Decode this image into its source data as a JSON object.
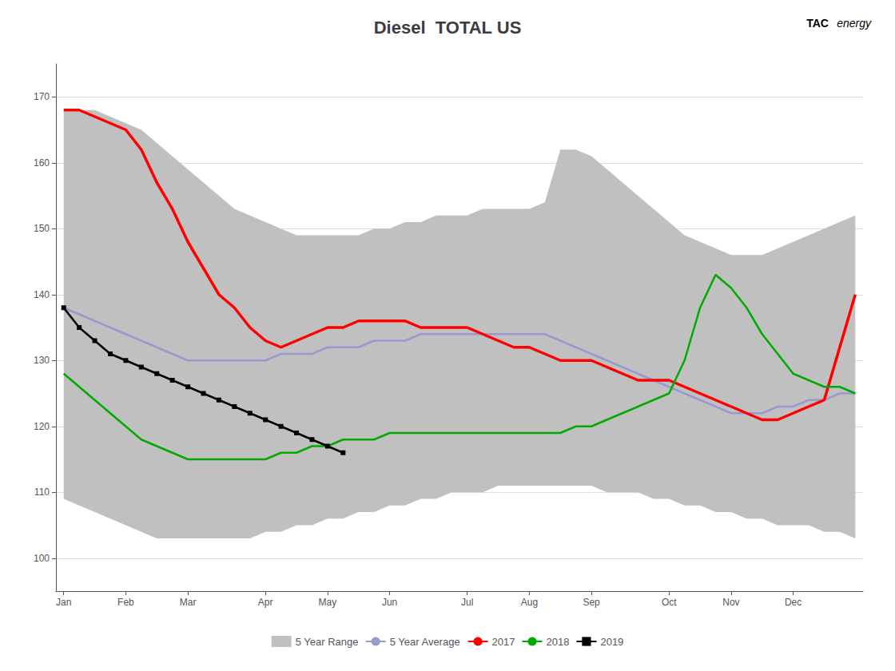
{
  "chart_data": {
    "type": "line",
    "title": "Diesel  TOTAL US",
    "annotations": [
      "TAC",
      "energy"
    ],
    "x": [
      0,
      1,
      2,
      3,
      4,
      5,
      6,
      7,
      8,
      9,
      10,
      11,
      12,
      13,
      14,
      15,
      16,
      17,
      18,
      19,
      20,
      21,
      22,
      23,
      24,
      25,
      26,
      27,
      28,
      29,
      30,
      31,
      32,
      33,
      34,
      35,
      36,
      37,
      38,
      39,
      40,
      41,
      42,
      43,
      44,
      45,
      46,
      47,
      48,
      49,
      50,
      51
    ],
    "xlim": [
      -0.5,
      51.5
    ],
    "xticks": [
      {
        "value": 0,
        "label": "Jan"
      },
      {
        "value": 4,
        "label": "Feb"
      },
      {
        "value": 8,
        "label": "Mar"
      },
      {
        "value": 13,
        "label": "Apr"
      },
      {
        "value": 17,
        "label": "May"
      },
      {
        "value": 21,
        "label": "Jun"
      },
      {
        "value": 26,
        "label": "Jul"
      },
      {
        "value": 30,
        "label": "Aug"
      },
      {
        "value": 34,
        "label": "Sep"
      },
      {
        "value": 39,
        "label": "Oct"
      },
      {
        "value": 43,
        "label": "Nov"
      },
      {
        "value": 47,
        "label": "Dec"
      }
    ],
    "ylim": [
      95,
      175
    ],
    "yticks": [
      100,
      110,
      120,
      130,
      140,
      150,
      160,
      170
    ],
    "grid": true,
    "legend": "bottom",
    "series": [
      {
        "name": "5 Year Range",
        "type": "range",
        "color": "#c0c0c0",
        "upper": [
          168,
          168,
          168,
          167,
          166,
          165,
          163,
          161,
          159,
          157,
          155,
          153,
          152,
          151,
          150,
          149,
          149,
          149,
          149,
          149,
          150,
          150,
          151,
          151,
          152,
          152,
          152,
          153,
          153,
          153,
          153,
          154,
          162,
          162,
          161,
          159,
          157,
          155,
          153,
          151,
          149,
          148,
          147,
          146,
          146,
          146,
          147,
          148,
          149,
          150,
          151,
          152
        ],
        "lower": [
          109,
          108,
          107,
          106,
          105,
          104,
          103,
          103,
          103,
          103,
          103,
          103,
          103,
          104,
          104,
          105,
          105,
          106,
          106,
          107,
          107,
          108,
          108,
          109,
          109,
          110,
          110,
          110,
          111,
          111,
          111,
          111,
          111,
          111,
          111,
          110,
          110,
          110,
          109,
          109,
          108,
          108,
          107,
          107,
          106,
          106,
          105,
          105,
          105,
          104,
          104,
          103
        ]
      },
      {
        "name": "5 Year Average",
        "type": "line",
        "color": "#9999cc",
        "values": [
          138,
          137,
          136,
          135,
          134,
          133,
          132,
          131,
          130,
          130,
          130,
          130,
          130,
          130,
          131,
          131,
          131,
          132,
          132,
          132,
          133,
          133,
          133,
          134,
          134,
          134,
          134,
          134,
          134,
          134,
          134,
          134,
          133,
          132,
          131,
          130,
          129,
          128,
          127,
          126,
          125,
          124,
          123,
          122,
          122,
          122,
          123,
          123,
          124,
          124,
          125,
          125
        ]
      },
      {
        "name": "2017",
        "type": "line",
        "color": "#ff0000",
        "values": [
          168,
          168,
          167,
          166,
          165,
          162,
          157,
          153,
          148,
          144,
          140,
          138,
          135,
          133,
          132,
          133,
          134,
          135,
          135,
          136,
          136,
          136,
          136,
          135,
          135,
          135,
          135,
          134,
          133,
          132,
          132,
          131,
          130,
          130,
          130,
          129,
          128,
          127,
          127,
          127,
          126,
          125,
          124,
          123,
          122,
          121,
          121,
          122,
          123,
          124,
          132,
          140
        ]
      },
      {
        "name": "2018",
        "type": "line",
        "color": "#00aa00",
        "values": [
          128,
          126,
          124,
          122,
          120,
          118,
          117,
          116,
          115,
          115,
          115,
          115,
          115,
          115,
          116,
          116,
          117,
          117,
          118,
          118,
          118,
          119,
          119,
          119,
          119,
          119,
          119,
          119,
          119,
          119,
          119,
          119,
          119,
          120,
          120,
          121,
          122,
          123,
          124,
          125,
          130,
          138,
          143,
          141,
          138,
          134,
          131,
          128,
          127,
          126,
          126,
          125
        ]
      },
      {
        "name": "2019",
        "type": "line",
        "color": "#000000",
        "marker": "square",
        "x": [
          0,
          1,
          2,
          3,
          4,
          5,
          6,
          7,
          8,
          9,
          10,
          11,
          12,
          13,
          14,
          15,
          16,
          17,
          18
        ],
        "values": [
          138,
          135,
          133,
          131,
          130,
          129,
          128,
          127,
          126,
          125,
          124,
          123,
          122,
          121,
          120,
          119,
          118,
          117,
          116
        ]
      }
    ]
  }
}
